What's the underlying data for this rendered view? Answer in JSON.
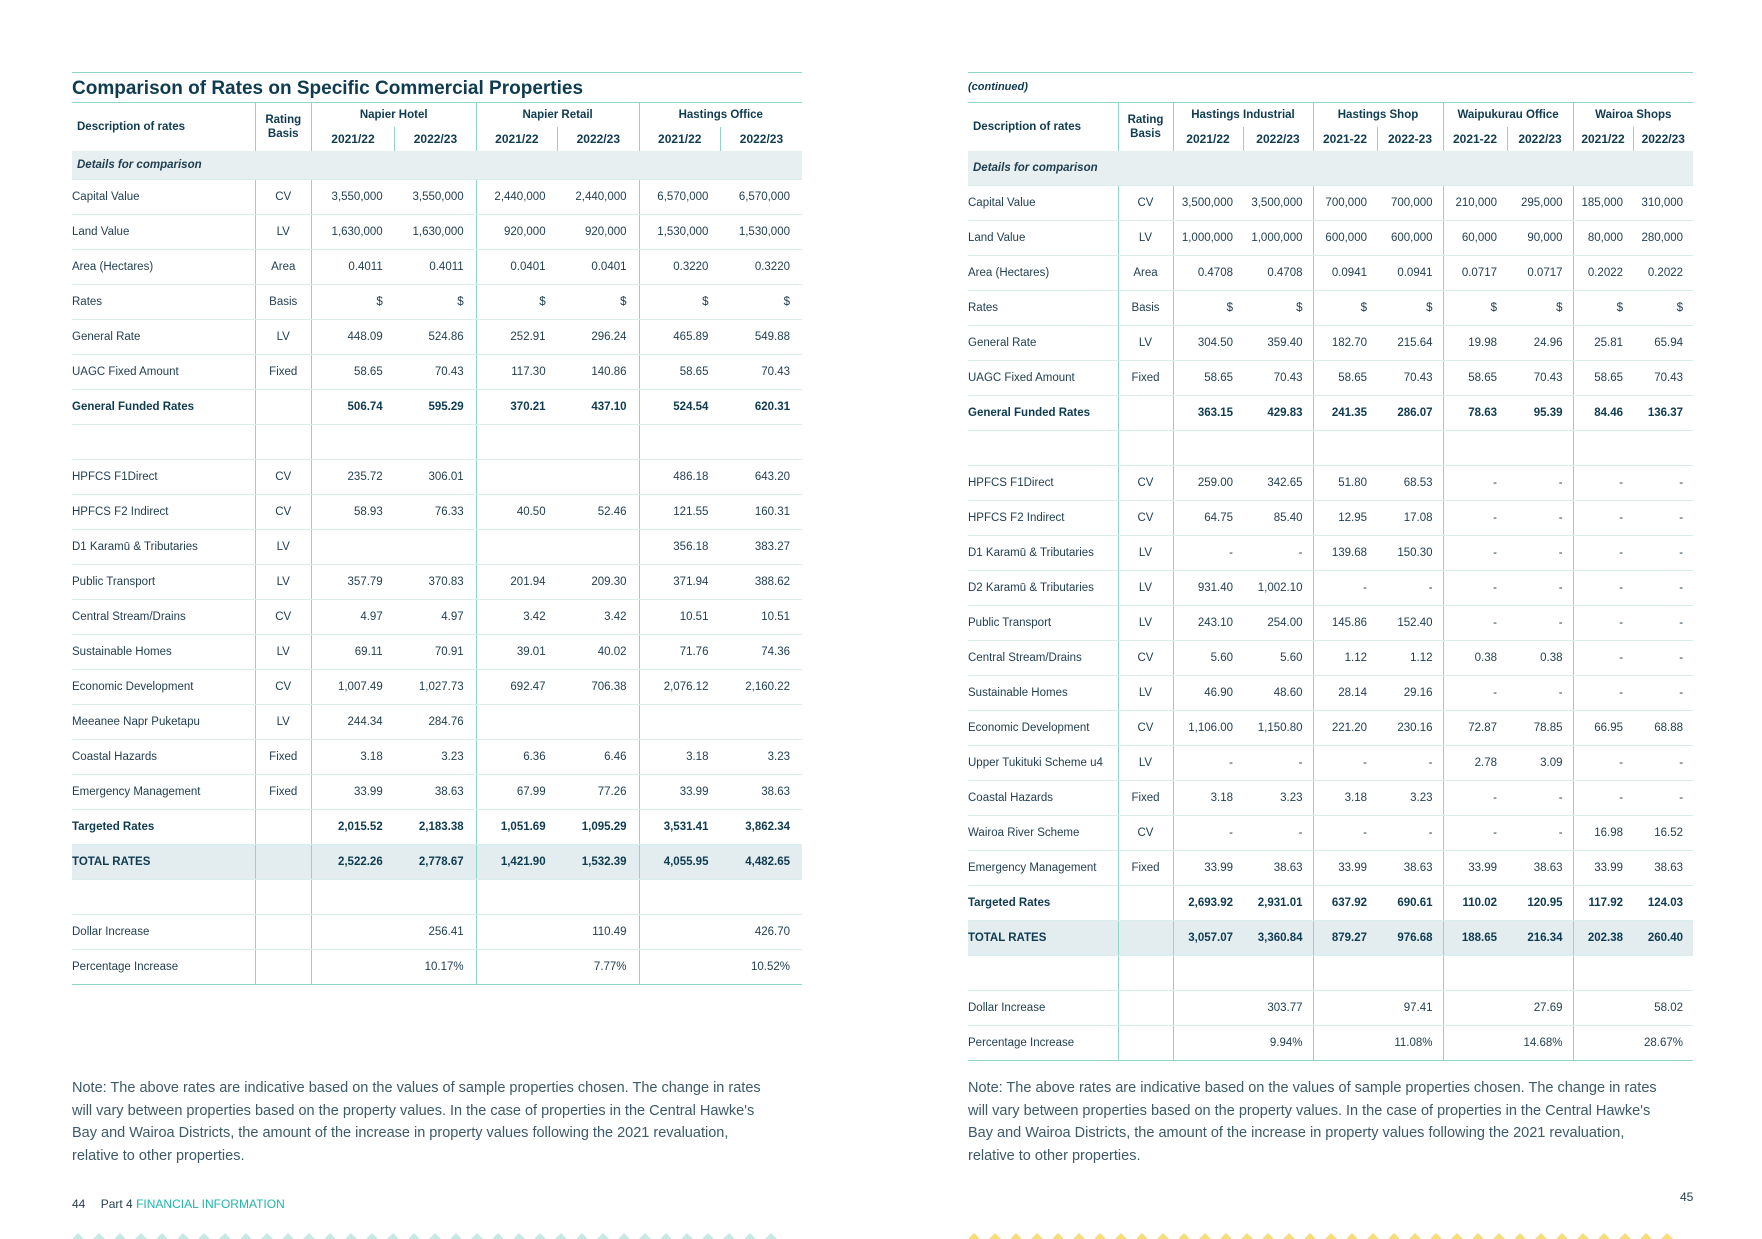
{
  "left": {
    "title": "Comparison of Rates on Specific Commercial Properties",
    "headers": {
      "desc": "Description of rates",
      "basis": "Rating Basis",
      "properties": [
        "Napier Hotel",
        "Napier Retail",
        "Hastings Office"
      ],
      "years": [
        "2021/22",
        "2022/23",
        "2021/22",
        "2022/23",
        "2021/22",
        "2022/23"
      ]
    },
    "details_label": "Details for comparison",
    "rows": [
      {
        "desc": "Capital Value",
        "basis": "CV",
        "vals": [
          "3,550,000",
          "3,550,000",
          "2,440,000",
          "2,440,000",
          "6,570,000",
          "6,570,000"
        ]
      },
      {
        "desc": "Land Value",
        "basis": "LV",
        "vals": [
          "1,630,000",
          "1,630,000",
          "920,000",
          "920,000",
          "1,530,000",
          "1,530,000"
        ]
      },
      {
        "desc": "Area (Hectares)",
        "basis": "Area",
        "vals": [
          "0.4011",
          "0.4011",
          "0.0401",
          "0.0401",
          "0.3220",
          "0.3220"
        ]
      },
      {
        "desc": "Rates",
        "basis": "Basis",
        "vals": [
          "$",
          "$",
          "$",
          "$",
          "$",
          "$"
        ]
      },
      {
        "desc": "General Rate",
        "basis": "LV",
        "vals": [
          "448.09",
          "524.86",
          "252.91",
          "296.24",
          "465.89",
          "549.88"
        ]
      },
      {
        "desc": "UAGC Fixed Amount",
        "basis": "Fixed",
        "vals": [
          "58.65",
          "70.43",
          "117.30",
          "140.86",
          "58.65",
          "70.43"
        ]
      },
      {
        "desc": "General Funded Rates",
        "basis": "",
        "vals": [
          "506.74",
          "595.29",
          "370.21",
          "437.10",
          "524.54",
          "620.31"
        ]
      },
      {
        "desc": "",
        "basis": "",
        "vals": [
          "",
          "",
          "",
          "",
          "",
          ""
        ]
      },
      {
        "desc": "HPFCS F1Direct",
        "basis": "CV",
        "vals": [
          "235.72",
          "306.01",
          "",
          "",
          "486.18",
          "643.20"
        ]
      },
      {
        "desc": "HPFCS F2 Indirect",
        "basis": "CV",
        "vals": [
          "58.93",
          "76.33",
          "40.50",
          "52.46",
          "121.55",
          "160.31"
        ]
      },
      {
        "desc": "D1 Karamū & Tributaries",
        "basis": "LV",
        "vals": [
          "",
          "",
          "",
          "",
          "356.18",
          "383.27"
        ]
      },
      {
        "desc": "Public Transport",
        "basis": "LV",
        "vals": [
          "357.79",
          "370.83",
          "201.94",
          "209.30",
          "371.94",
          "388.62"
        ]
      },
      {
        "desc": "Central Stream/Drains",
        "basis": "CV",
        "vals": [
          "4.97",
          "4.97",
          "3.42",
          "3.42",
          "10.51",
          "10.51"
        ]
      },
      {
        "desc": "Sustainable Homes",
        "basis": "LV",
        "vals": [
          "69.11",
          "70.91",
          "39.01",
          "40.02",
          "71.76",
          "74.36"
        ]
      },
      {
        "desc": "Economic Development",
        "basis": "CV",
        "vals": [
          "1,007.49",
          "1,027.73",
          "692.47",
          "706.38",
          "2,076.12",
          "2,160.22"
        ]
      },
      {
        "desc": "Meeanee Napr Puketapu",
        "basis": "LV",
        "vals": [
          "244.34",
          "284.76",
          "",
          "",
          "",
          ""
        ]
      },
      {
        "desc": "Coastal Hazards",
        "basis": "Fixed",
        "vals": [
          "3.18",
          "3.23",
          "6.36",
          "6.46",
          "3.18",
          "3.23"
        ]
      },
      {
        "desc": "Emergency Management",
        "basis": "Fixed",
        "vals": [
          "33.99",
          "38.63",
          "67.99",
          "77.26",
          "33.99",
          "38.63"
        ]
      },
      {
        "desc": "Targeted Rates",
        "basis": "",
        "vals": [
          "2,015.52",
          "2,183.38",
          "1,051.69",
          "1,095.29",
          "3,531.41",
          "3,862.34"
        ]
      },
      {
        "desc": "TOTAL RATES",
        "basis": "",
        "vals": [
          "2,522.26",
          "2,778.67",
          "1,421.90",
          "1,532.39",
          "4,055.95",
          "4,482.65"
        ]
      },
      {
        "desc": "",
        "basis": "",
        "vals": [
          "",
          "",
          "",
          "",
          "",
          ""
        ]
      },
      {
        "desc": "Dollar Increase",
        "basis": "",
        "vals": [
          "",
          "256.41",
          "",
          "110.49",
          "",
          "426.70"
        ]
      },
      {
        "desc": "Percentage Increase",
        "basis": "",
        "vals": [
          "",
          "10.17%",
          "",
          "7.77%",
          "",
          "10.52%"
        ]
      }
    ],
    "note": "Note: The above rates are indicative based on the values of sample properties chosen. The change in rates will vary between properties based on the property values. In the case of properties in the Central Hawke's Bay and Wairoa Districts, the amount of the increase in property values following the 2021 revaluation, relative to other properties.",
    "footer": {
      "page": "44",
      "part": "Part 4",
      "section": "FINANCIAL INFORMATION"
    }
  },
  "right": {
    "continued": "(continued)",
    "headers": {
      "desc": "Description of rates",
      "basis": "Rating Basis",
      "properties": [
        "Hastings Industrial",
        "Hastings Shop",
        "Waipukurau Office",
        "Wairoa Shops"
      ],
      "years": [
        "2021/22",
        "2022/23",
        "2021-22",
        "2022-23",
        "2021-22",
        "2022/23",
        "2021/22",
        "2022/23"
      ]
    },
    "details_label": "Details for comparison",
    "rows": [
      {
        "desc": "Capital Value",
        "basis": "CV",
        "vals": [
          "3,500,000",
          "3,500,000",
          "700,000",
          "700,000",
          "210,000",
          "295,000",
          "185,000",
          "310,000"
        ]
      },
      {
        "desc": "Land Value",
        "basis": "LV",
        "vals": [
          "1,000,000",
          "1,000,000",
          "600,000",
          "600,000",
          "60,000",
          "90,000",
          "80,000",
          "280,000"
        ]
      },
      {
        "desc": "Area (Hectares)",
        "basis": "Area",
        "vals": [
          "0.4708",
          "0.4708",
          "0.0941",
          "0.0941",
          "0.0717",
          "0.0717",
          "0.2022",
          "0.2022"
        ]
      },
      {
        "desc": "Rates",
        "basis": "Basis",
        "vals": [
          "$",
          "$",
          "$",
          "$",
          "$",
          "$",
          "$",
          "$"
        ]
      },
      {
        "desc": "General Rate",
        "basis": "LV",
        "vals": [
          "304.50",
          "359.40",
          "182.70",
          "215.64",
          "19.98",
          "24.96",
          "25.81",
          "65.94"
        ]
      },
      {
        "desc": "UAGC Fixed Amount",
        "basis": "Fixed",
        "vals": [
          "58.65",
          "70.43",
          "58.65",
          "70.43",
          "58.65",
          "70.43",
          "58.65",
          "70.43"
        ]
      },
      {
        "desc": "General Funded Rates",
        "basis": "",
        "vals": [
          "363.15",
          "429.83",
          "241.35",
          "286.07",
          "78.63",
          "95.39",
          "84.46",
          "136.37"
        ]
      },
      {
        "desc": "",
        "basis": "",
        "vals": [
          "",
          "",
          "",
          "",
          "",
          "",
          "",
          ""
        ]
      },
      {
        "desc": "HPFCS F1Direct",
        "basis": "CV",
        "vals": [
          "259.00",
          "342.65",
          "51.80",
          "68.53",
          "-",
          "-",
          "-",
          "-"
        ]
      },
      {
        "desc": "HPFCS F2 Indirect",
        "basis": "CV",
        "vals": [
          "64.75",
          "85.40",
          "12.95",
          "17.08",
          "-",
          "-",
          "-",
          "-"
        ]
      },
      {
        "desc": "D1 Karamū & Tributaries",
        "basis": "LV",
        "vals": [
          "-",
          "-",
          "139.68",
          "150.30",
          "-",
          "-",
          "-",
          "-"
        ]
      },
      {
        "desc": "D2 Karamū & Tributaries",
        "basis": "LV",
        "vals": [
          "931.40",
          "1,002.10",
          "-",
          "-",
          "-",
          "-",
          "-",
          "-"
        ]
      },
      {
        "desc": "Public Transport",
        "basis": "LV",
        "vals": [
          "243.10",
          "254.00",
          "145.86",
          "152.40",
          "-",
          "-",
          "-",
          "-"
        ]
      },
      {
        "desc": "Central Stream/Drains",
        "basis": "CV",
        "vals": [
          "5.60",
          "5.60",
          "1.12",
          "1.12",
          "0.38",
          "0.38",
          "-",
          "-"
        ]
      },
      {
        "desc": "Sustainable Homes",
        "basis": "LV",
        "vals": [
          "46.90",
          "48.60",
          "28.14",
          "29.16",
          "-",
          "-",
          "-",
          "-"
        ]
      },
      {
        "desc": "Economic Development",
        "basis": "CV",
        "vals": [
          "1,106.00",
          "1,150.80",
          "221.20",
          "230.16",
          "72.87",
          "78.85",
          "66.95",
          "68.88"
        ]
      },
      {
        "desc": "Upper Tukituki Scheme u4",
        "basis": "LV",
        "vals": [
          "-",
          "-",
          "-",
          "-",
          "2.78",
          "3.09",
          "-",
          "-"
        ]
      },
      {
        "desc": "Coastal Hazards",
        "basis": "Fixed",
        "vals": [
          "3.18",
          "3.23",
          "3.18",
          "3.23",
          "-",
          "-",
          "-",
          "-"
        ]
      },
      {
        "desc": "Wairoa River Scheme",
        "basis": "CV",
        "vals": [
          "-",
          "-",
          "-",
          "-",
          "-",
          "-",
          "16.98",
          "16.52"
        ]
      },
      {
        "desc": "Emergency Management",
        "basis": "Fixed",
        "vals": [
          "33.99",
          "38.63",
          "33.99",
          "38.63",
          "33.99",
          "38.63",
          "33.99",
          "38.63"
        ]
      },
      {
        "desc": "Targeted Rates",
        "basis": "",
        "vals": [
          "2,693.92",
          "2,931.01",
          "637.92",
          "690.61",
          "110.02",
          "120.95",
          "117.92",
          "124.03"
        ]
      },
      {
        "desc": "TOTAL RATES",
        "basis": "",
        "vals": [
          "3,057.07",
          "3,360.84",
          "879.27",
          "976.68",
          "188.65",
          "216.34",
          "202.38",
          "260.40"
        ]
      },
      {
        "desc": "",
        "basis": "",
        "vals": [
          "",
          "",
          "",
          "",
          "",
          "",
          "",
          ""
        ]
      },
      {
        "desc": "Dollar Increase",
        "basis": "",
        "vals": [
          "",
          "303.77",
          "",
          "97.41",
          "",
          "27.69",
          "",
          "58.02"
        ]
      },
      {
        "desc": "Percentage Increase",
        "basis": "",
        "vals": [
          "",
          "9.94%",
          "",
          "11.08%",
          "",
          "14.68%",
          "",
          "28.67%"
        ]
      }
    ],
    "note": "Note: The above rates are indicative based on the values of sample properties chosen. The change in rates will vary between properties based on the property values. In the case of properties in the Central Hawke's Bay and Wairoa Districts, the amount of the increase in property values following the 2021 revaluation, relative to other properties.",
    "footer": {
      "page": "45"
    }
  },
  "colors": {
    "accent_line": "#8fd6c9",
    "title": "#0f3b50",
    "section_teal": "#1fb5ad",
    "highlight_row": "#e3edf0",
    "triangles_left": "#c7e9e4",
    "triangles_right": "#f7dc7a"
  }
}
